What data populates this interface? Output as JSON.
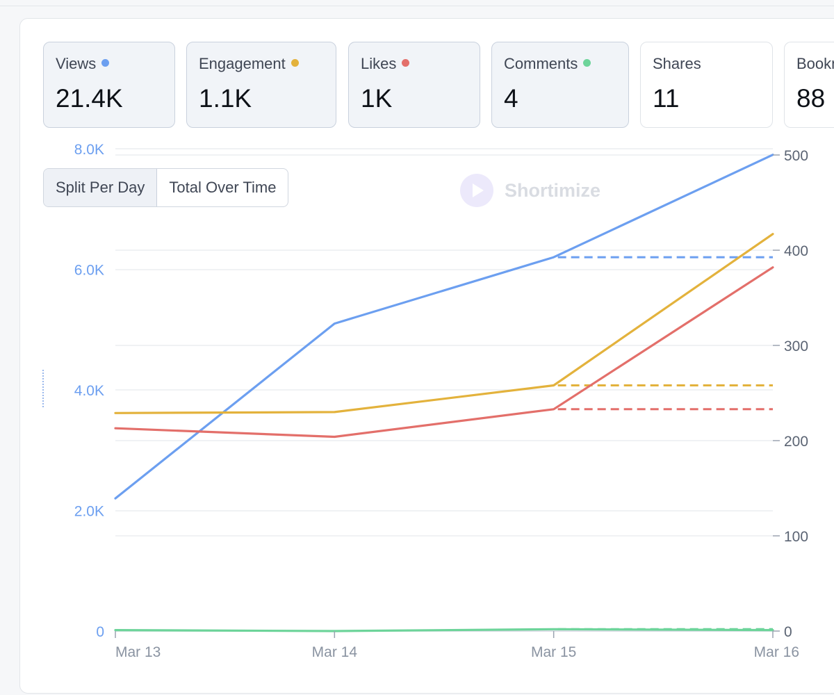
{
  "stats": [
    {
      "label": "Views",
      "value": "21.4K",
      "dot_color": "#6c9ff0"
    },
    {
      "label": "Engagement",
      "value": "1.1K",
      "dot_color": "#e3b23c"
    },
    {
      "label": "Likes",
      "value": "1K",
      "dot_color": "#e36f6a"
    },
    {
      "label": "Comments",
      "value": "4",
      "dot_color": "#6dd49a"
    },
    {
      "label": "Shares",
      "value": "11"
    },
    {
      "label": "Bookmarks",
      "value": "88"
    }
  ],
  "toggle": {
    "split_label": "Split Per Day",
    "total_label": "Total Over Time",
    "active": "split"
  },
  "watermark": {
    "text": "Shortimize"
  },
  "chart_data": {
    "type": "line",
    "x": [
      "Mar 13",
      "Mar 14",
      "Mar 15",
      "Mar 16"
    ],
    "y_left": {
      "ticks": [
        "0",
        "2.0K",
        "4.0K",
        "6.0K",
        "8.0K"
      ],
      "range": [
        0,
        8000
      ],
      "color": "#6c9ff0"
    },
    "y_right": {
      "ticks": [
        "0",
        "100",
        "200",
        "300",
        "400",
        "500"
      ],
      "range": [
        0,
        500
      ],
      "color": "#5b6473"
    },
    "grid": true,
    "series": [
      {
        "name": "Views",
        "axis": "left",
        "color": "#6c9ff0",
        "values": [
          2200,
          5100,
          6200,
          7900
        ],
        "dashed_average": 6200
      },
      {
        "name": "Engagement",
        "axis": "right",
        "color": "#e3b23c",
        "values": [
          229,
          230,
          258,
          417
        ],
        "dashed_average": 258
      },
      {
        "name": "Likes",
        "axis": "right",
        "color": "#e36f6a",
        "values": [
          213,
          204,
          233,
          382
        ],
        "dashed_average": 233
      },
      {
        "name": "Comments",
        "axis": "right",
        "color": "#6dd49a",
        "values": [
          1,
          0,
          2,
          1
        ],
        "dashed_average": 2
      }
    ]
  }
}
